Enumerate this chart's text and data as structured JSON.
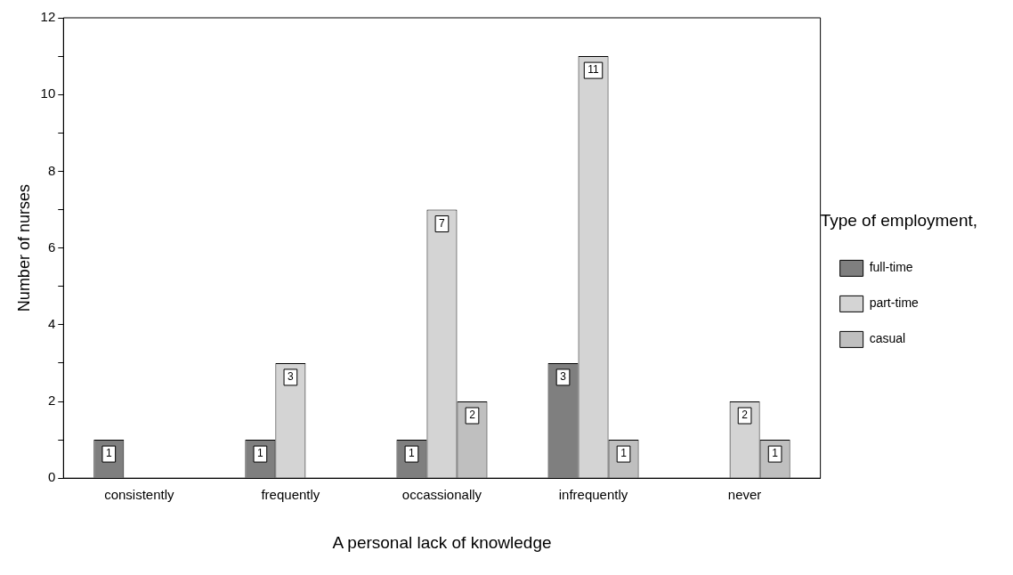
{
  "chart_data": {
    "type": "bar",
    "xlabel": "A personal lack of knowledge",
    "ylabel": "Number of nurses",
    "legend_title": "Type of employment,",
    "legend": "right",
    "categories": [
      "consistently",
      "frequently",
      "occassionally",
      "infrequently",
      "never"
    ],
    "series": [
      {
        "name": "full-time",
        "color": "#7f7f7f",
        "values": [
          1,
          1,
          1,
          3,
          null
        ]
      },
      {
        "name": "part-time",
        "color": "#d4d4d4",
        "values": [
          null,
          3,
          7,
          11,
          2
        ]
      },
      {
        "name": "casual",
        "color": "#bfbfbf",
        "values": [
          null,
          null,
          2,
          1,
          1
        ]
      }
    ],
    "ylim": [
      0,
      12
    ],
    "yticks": [
      0,
      {
        "value": 1,
        "label": null
      },
      2,
      {
        "value": 3,
        "label": null
      },
      4,
      {
        "value": 5,
        "label": null
      },
      6,
      {
        "value": 7,
        "label": null
      },
      8,
      {
        "value": 9,
        "label": null
      },
      10,
      {
        "value": 11,
        "label": null
      },
      12
    ],
    "grid": false,
    "data_labels": true
  }
}
